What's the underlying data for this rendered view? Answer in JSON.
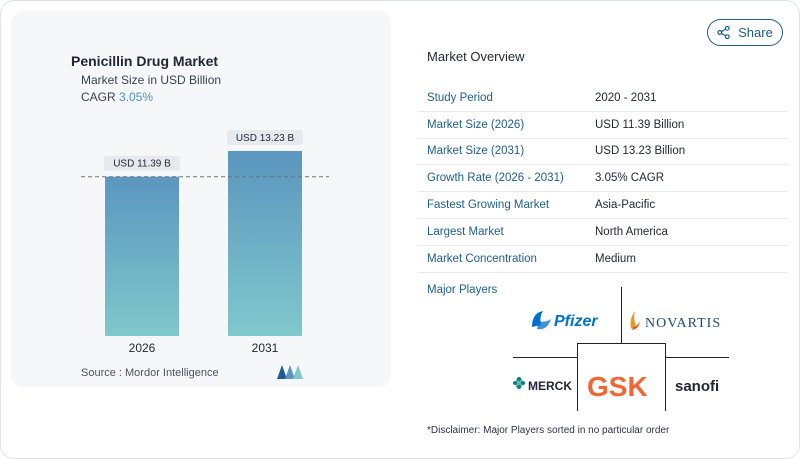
{
  "chart_card": {
    "title": "Penicillin Drug Market",
    "subtitle": "Market Size in USD Billion",
    "cagr_label": "CAGR",
    "cagr_value": "3.05%",
    "source": "Source :  Mordor Intelligence"
  },
  "chart_data": {
    "type": "bar",
    "categories": [
      "2026",
      "2031"
    ],
    "values": [
      11.39,
      13.23
    ],
    "data_labels": [
      "USD 11.39 B",
      "USD 13.23 B"
    ],
    "title": "Penicillin Drug Market",
    "subtitle": "Market Size in USD Billion",
    "xlabel": "",
    "ylabel": "",
    "ylim": [
      0,
      13.23
    ],
    "grid": false,
    "reference_line": 11.39,
    "bar_colors": [
      "#5b96bf",
      "#7fc8cb"
    ]
  },
  "share": {
    "label": "Share",
    "icon": "share-icon"
  },
  "overview": {
    "title": "Market Overview",
    "rows": [
      {
        "key": "Study Period",
        "value": "2020 - 2031"
      },
      {
        "key": "Market Size (2026)",
        "value": "USD 11.39 Billion"
      },
      {
        "key": "Market Size (2031)",
        "value": "USD 13.23 Billion"
      },
      {
        "key": "Growth Rate (2026 - 2031)",
        "value": "3.05% CAGR"
      },
      {
        "key": "Fastest Growing Market",
        "value": "Asia-Pacific"
      },
      {
        "key": "Largest Market",
        "value": "North America"
      },
      {
        "key": "Market Concentration",
        "value": "Medium"
      }
    ]
  },
  "players": {
    "label": "Major Players",
    "logos": [
      "Pfizer",
      "NOVARTIS",
      "MERCK",
      "GSK",
      "sanofi"
    ]
  },
  "disclaimer": "*Disclaimer: Major Players sorted in no particular order",
  "colors": {
    "accent": "#1e5e8c",
    "pfizer": "#0072ce",
    "gsk": "#f36633",
    "merck": "#00857c",
    "novartis_mark": "#ec9a1e"
  }
}
